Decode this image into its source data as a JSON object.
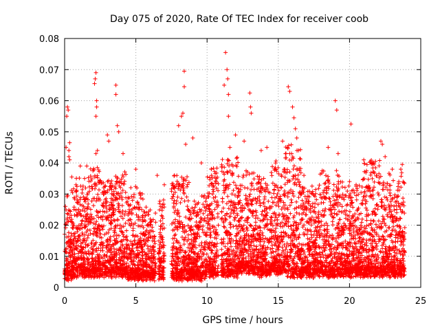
{
  "chart_data": {
    "type": "scatter",
    "title": "Day 075 of 2020, Rate Of TEC Index for receiver coob",
    "xlabel": "GPS time / hours",
    "ylabel": "ROTI / TECUs",
    "xlim": [
      0,
      25
    ],
    "ylim": [
      0,
      0.08
    ],
    "x_ticks": [
      0,
      5,
      10,
      15,
      20,
      25
    ],
    "x_tick_labels": [
      "0",
      "5",
      "10",
      "15",
      "20",
      "25"
    ],
    "y_ticks": [
      0,
      0.01,
      0.02,
      0.03,
      0.04,
      0.05,
      0.06,
      0.07,
      0.08
    ],
    "y_tick_labels": [
      "0",
      "0.01",
      "0.02",
      "0.03",
      "0.04",
      "0.05",
      "0.06",
      "0.07",
      "0.08"
    ],
    "grid": true,
    "marker": "plus",
    "marker_color": "#ff0000",
    "series": [
      {
        "x": [
          0.1,
          0.15,
          0.2,
          0.25,
          0.3,
          0.3,
          0.35,
          0.35,
          0.5,
          0.8,
          1.1,
          1.4,
          2.1,
          2.15,
          2.2,
          2.2,
          2.25,
          2.25,
          2.2,
          2.3,
          3.0,
          3.1,
          3.6,
          3.6,
          3.7,
          3.8,
          4.1,
          5.0,
          6.5,
          7.0,
          8.0,
          8.2,
          8.3,
          8.4,
          8.4,
          8.5,
          9.0,
          9.6,
          10.3,
          11.2,
          11.3,
          11.4,
          11.45,
          11.5,
          11.5,
          11.6,
          12.0,
          12.6,
          13.0,
          13.05,
          13.1,
          13.8,
          14.2,
          15.3,
          15.7,
          15.8,
          16.0,
          16.1,
          16.2,
          16.3,
          16.8,
          18.5,
          19.0,
          19.1,
          19.2,
          20.0,
          20.1,
          21.0,
          22.2,
          22.3,
          22.5,
          23.0,
          23.6,
          23.7
        ],
        "y": [
          0.045,
          0.055,
          0.058,
          0.057,
          0.044,
          0.042,
          0.041,
          0.0465,
          0.0355,
          0.033,
          0.039,
          0.035,
          0.0655,
          0.067,
          0.069,
          0.055,
          0.06,
          0.058,
          0.043,
          0.044,
          0.049,
          0.047,
          0.065,
          0.062,
          0.052,
          0.05,
          0.043,
          0.038,
          0.036,
          0.033,
          0.052,
          0.055,
          0.056,
          0.0645,
          0.0695,
          0.046,
          0.048,
          0.04,
          0.038,
          0.065,
          0.0755,
          0.07,
          0.067,
          0.062,
          0.055,
          0.045,
          0.049,
          0.047,
          0.0625,
          0.058,
          0.056,
          0.044,
          0.045,
          0.047,
          0.0645,
          0.063,
          0.058,
          0.0545,
          0.051,
          0.048,
          0.036,
          0.045,
          0.06,
          0.057,
          0.043,
          0.034,
          0.0525,
          0.041,
          0.047,
          0.046,
          0.042,
          0.038,
          0.038,
          0.0395
        ]
      }
    ],
    "dense_bands": [
      {
        "x0": 0.0,
        "x1": 0.6,
        "ymin": 0.002,
        "ymax": 0.03
      },
      {
        "x0": 0.6,
        "x1": 1.5,
        "ymin": 0.003,
        "ymax": 0.033
      },
      {
        "x0": 1.5,
        "x1": 2.6,
        "ymin": 0.003,
        "ymax": 0.038
      },
      {
        "x0": 2.6,
        "x1": 3.5,
        "ymin": 0.003,
        "ymax": 0.033
      },
      {
        "x0": 3.5,
        "x1": 4.4,
        "ymin": 0.003,
        "ymax": 0.036
      },
      {
        "x0": 4.4,
        "x1": 5.5,
        "ymin": 0.002,
        "ymax": 0.03
      },
      {
        "x0": 5.5,
        "x1": 6.4,
        "ymin": 0.002,
        "ymax": 0.024
      },
      {
        "x0": 6.6,
        "x1": 7.0,
        "ymin": 0.002,
        "ymax": 0.03
      },
      {
        "x0": 7.5,
        "x1": 8.8,
        "ymin": 0.002,
        "ymax": 0.035
      },
      {
        "x0": 8.8,
        "x1": 10.0,
        "ymin": 0.002,
        "ymax": 0.028
      },
      {
        "x0": 10.0,
        "x1": 10.8,
        "ymin": 0.003,
        "ymax": 0.037
      },
      {
        "x0": 11.0,
        "x1": 12.2,
        "ymin": 0.003,
        "ymax": 0.04
      },
      {
        "x0": 12.2,
        "x1": 13.4,
        "ymin": 0.004,
        "ymax": 0.036
      },
      {
        "x0": 13.4,
        "x1": 14.5,
        "ymin": 0.003,
        "ymax": 0.034
      },
      {
        "x0": 14.5,
        "x1": 15.5,
        "ymin": 0.004,
        "ymax": 0.04
      },
      {
        "x0": 15.5,
        "x1": 16.6,
        "ymin": 0.003,
        "ymax": 0.045
      },
      {
        "x0": 16.6,
        "x1": 17.8,
        "ymin": 0.003,
        "ymax": 0.03
      },
      {
        "x0": 17.8,
        "x1": 19.5,
        "ymin": 0.003,
        "ymax": 0.036
      },
      {
        "x0": 19.5,
        "x1": 21.0,
        "ymin": 0.003,
        "ymax": 0.032
      },
      {
        "x0": 21.0,
        "x1": 22.3,
        "ymin": 0.003,
        "ymax": 0.04
      },
      {
        "x0": 22.3,
        "x1": 23.9,
        "ymin": 0.003,
        "ymax": 0.034
      }
    ]
  }
}
